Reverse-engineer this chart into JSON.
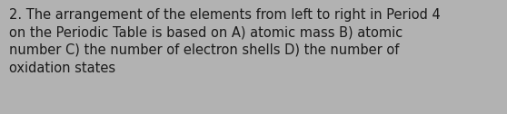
{
  "text": "2. The arrangement of the elements from left to right in Period 4\non the Periodic Table is based on A) atomic mass B) atomic\nnumber C) the number of electron shells D) the number of\noxidation states",
  "background_color": "#b2b2b2",
  "text_color": "#1a1a1a",
  "font_size": 10.5,
  "fig_width": 5.58,
  "fig_height": 1.26
}
